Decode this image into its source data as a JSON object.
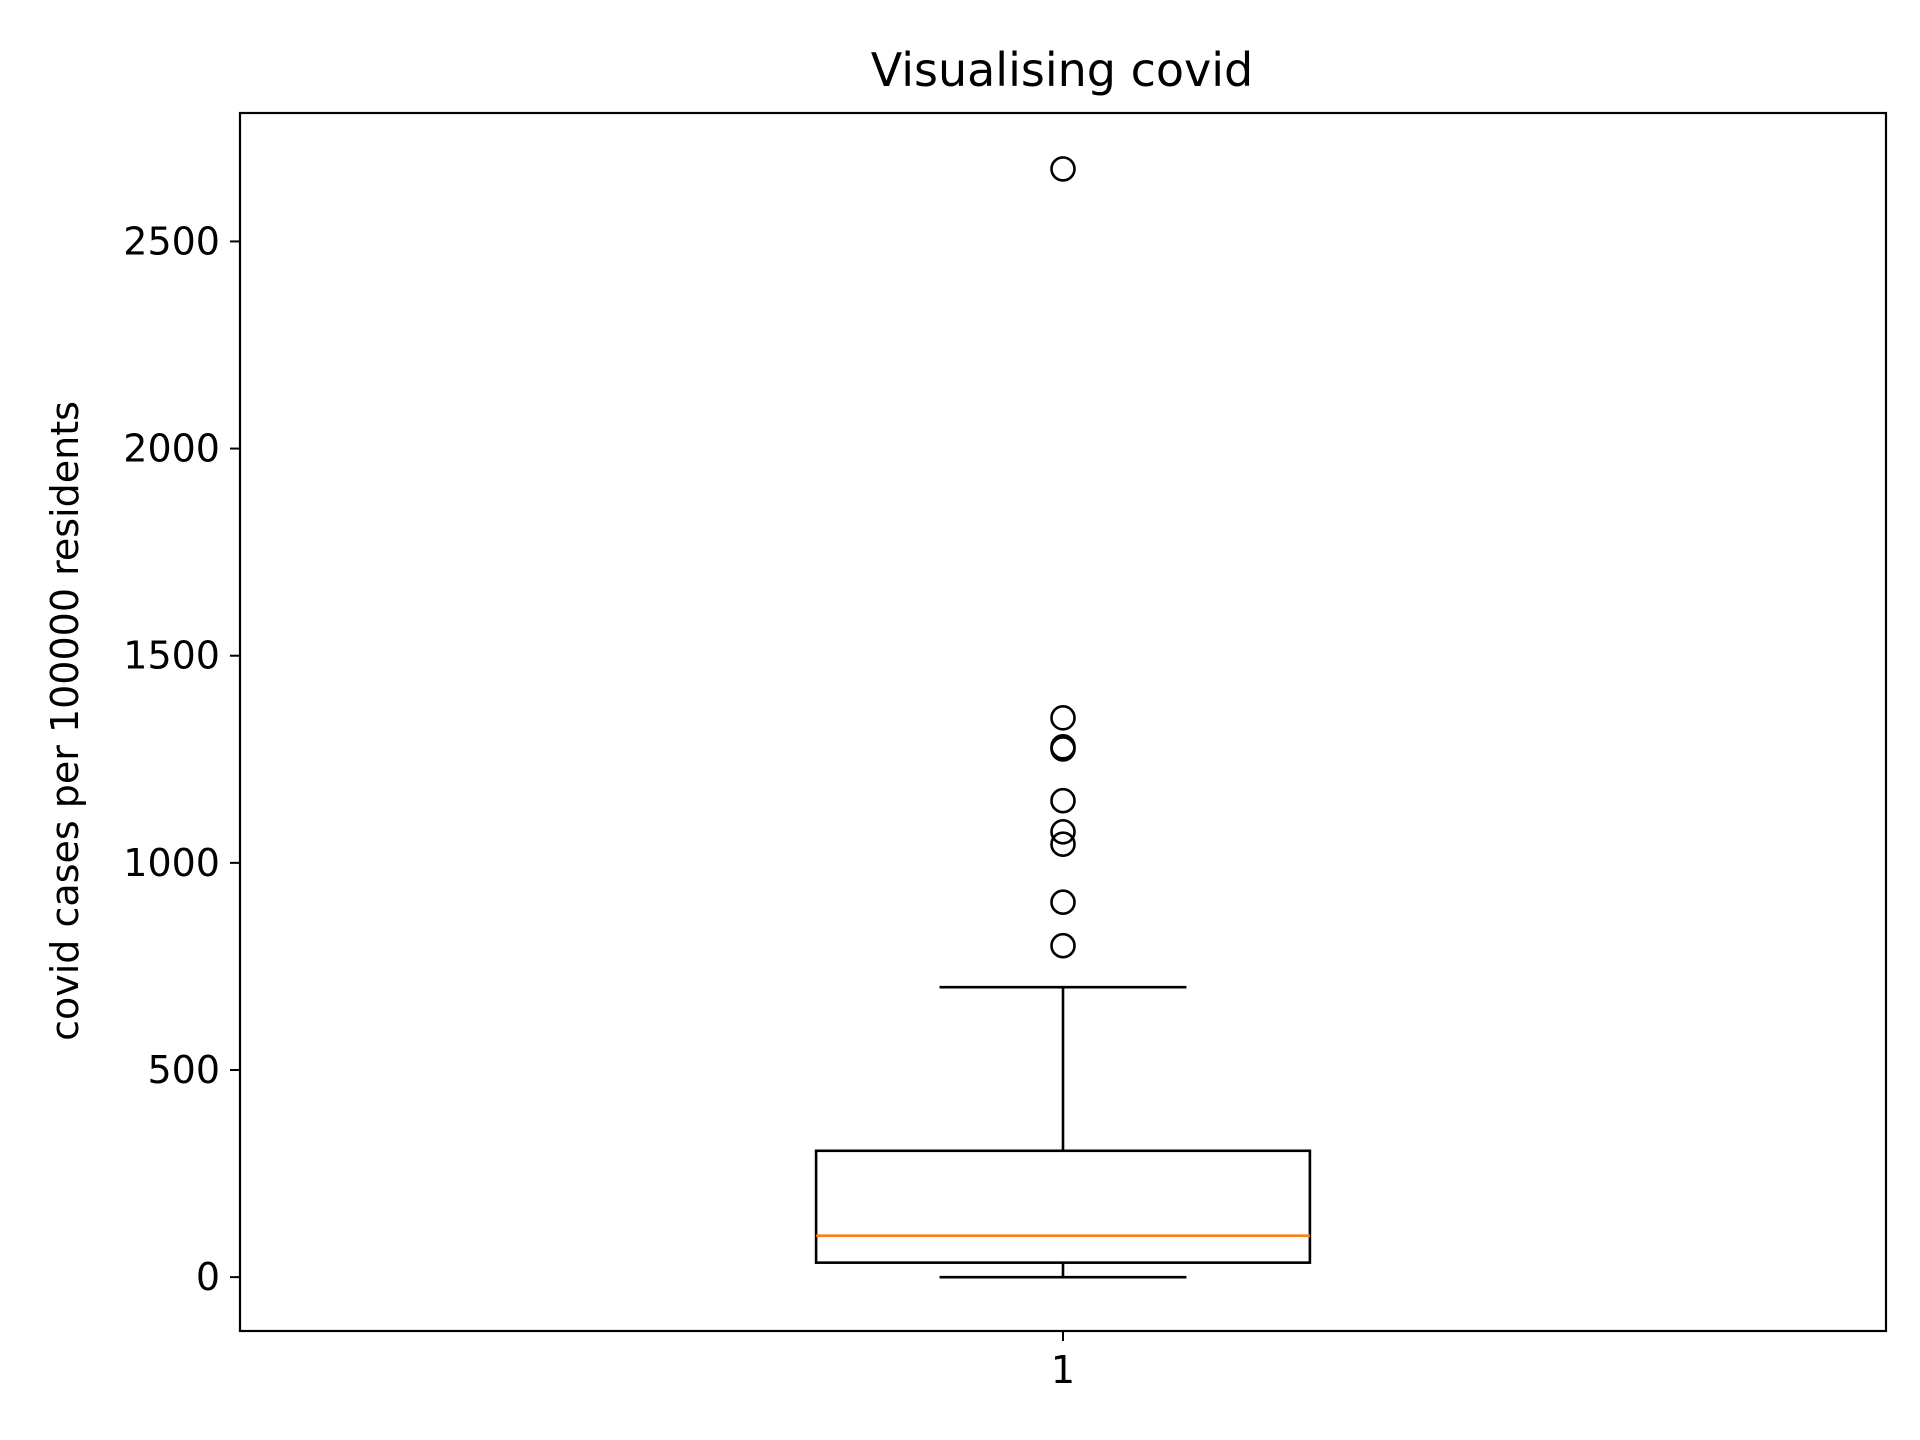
{
  "chart_data": {
    "type": "box",
    "title": "Visualising covid",
    "xlabel": "",
    "ylabel": "covid cases per 100000 residents",
    "categories": [
      "1"
    ],
    "xlim": [
      0.5,
      1.5
    ],
    "ylim": [
      -130,
      2810
    ],
    "yticks": [
      0,
      500,
      1000,
      1500,
      2000,
      2500
    ],
    "grid": false,
    "boxes": [
      {
        "category": "1",
        "whisker_low": 0,
        "q1": 35,
        "median": 100,
        "q3": 305,
        "whisker_high": 700,
        "outliers": [
          800,
          905,
          1045,
          1075,
          1150,
          1275,
          1280,
          1350,
          2675
        ]
      }
    ],
    "colors": {
      "box": "#000000",
      "median": "#ff7f0e",
      "outlier": "#000000"
    }
  }
}
